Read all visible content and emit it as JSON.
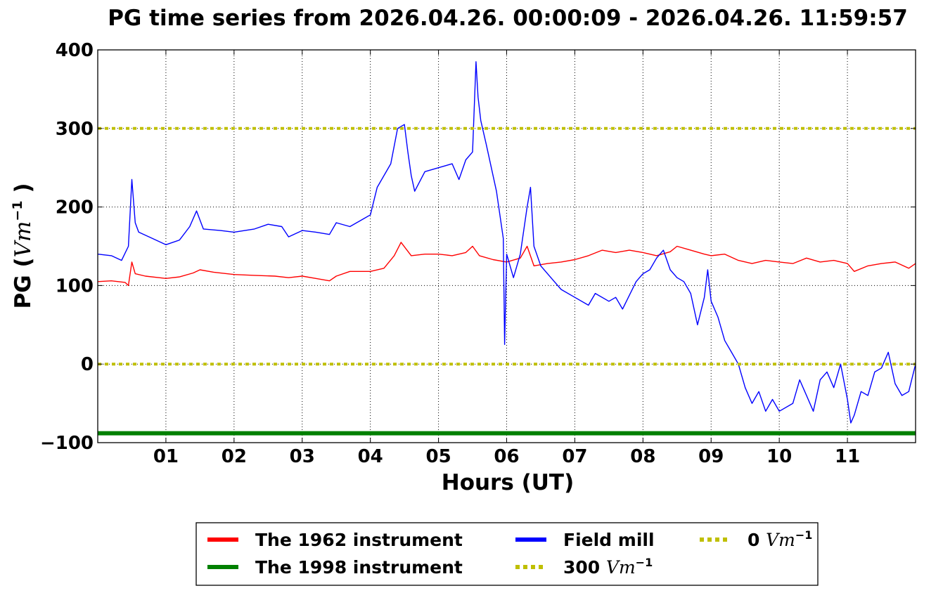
{
  "chart_data": {
    "type": "line",
    "title": "PG time series from 2026.04.26. 00:00:09 - 2026.04.26. 11:59:57",
    "xlabel": "Hours (UT)",
    "ylabel": {
      "prefix": "PG (",
      "math": "Vm",
      "sup": "−1",
      "suffix": " )"
    },
    "xlim": [
      0,
      12
    ],
    "ylim": [
      -100,
      400
    ],
    "xticks": [
      {
        "value": 1,
        "label": "01"
      },
      {
        "value": 2,
        "label": "02"
      },
      {
        "value": 3,
        "label": "03"
      },
      {
        "value": 4,
        "label": "04"
      },
      {
        "value": 5,
        "label": "05"
      },
      {
        "value": 6,
        "label": "06"
      },
      {
        "value": 7,
        "label": "07"
      },
      {
        "value": 8,
        "label": "08"
      },
      {
        "value": 9,
        "label": "09"
      },
      {
        "value": 10,
        "label": "10"
      },
      {
        "value": 11,
        "label": "11"
      }
    ],
    "yticks": [
      {
        "value": -100,
        "label": "−100"
      },
      {
        "value": 0,
        "label": "0"
      },
      {
        "value": 100,
        "label": "100"
      },
      {
        "value": 200,
        "label": "200"
      },
      {
        "value": 300,
        "label": "300"
      },
      {
        "value": 400,
        "label": "400"
      }
    ],
    "grid": true,
    "legend_position": "bottom-outside",
    "series": [
      {
        "name": "The 1962 instrument",
        "color": "#ff0000",
        "style": "solid",
        "x": [
          0.0,
          0.2,
          0.4,
          0.45,
          0.5,
          0.55,
          0.7,
          0.9,
          1.0,
          1.2,
          1.4,
          1.5,
          1.7,
          2.0,
          2.3,
          2.6,
          2.8,
          3.0,
          3.2,
          3.4,
          3.5,
          3.7,
          4.0,
          4.2,
          4.35,
          4.45,
          4.6,
          4.8,
          5.0,
          5.2,
          5.4,
          5.5,
          5.6,
          5.8,
          6.0,
          6.2,
          6.3,
          6.4,
          6.6,
          6.8,
          7.0,
          7.2,
          7.4,
          7.6,
          7.8,
          8.0,
          8.2,
          8.4,
          8.5,
          8.7,
          8.9,
          9.0,
          9.2,
          9.4,
          9.6,
          9.8,
          10.0,
          10.2,
          10.4,
          10.6,
          10.8,
          11.0,
          11.1,
          11.3,
          11.5,
          11.7,
          11.9,
          12.0
        ],
        "y": [
          105,
          106,
          104,
          100,
          130,
          115,
          112,
          110,
          109,
          111,
          116,
          120,
          117,
          114,
          113,
          112,
          110,
          112,
          109,
          106,
          112,
          118,
          118,
          122,
          138,
          155,
          138,
          140,
          140,
          138,
          142,
          150,
          138,
          133,
          130,
          135,
          150,
          125,
          128,
          130,
          133,
          138,
          145,
          142,
          145,
          142,
          138,
          143,
          150,
          145,
          140,
          138,
          140,
          132,
          128,
          132,
          130,
          128,
          135,
          130,
          132,
          128,
          118,
          125,
          128,
          130,
          122,
          128
        ]
      },
      {
        "name": "The 1998 instrument",
        "color": "#008000",
        "style": "solid",
        "x": [
          0,
          12
        ],
        "y": [
          -88,
          -88
        ]
      },
      {
        "name": "Field mill",
        "color": "#0000ff",
        "style": "solid",
        "x": [
          0.0,
          0.2,
          0.35,
          0.45,
          0.5,
          0.55,
          0.6,
          0.8,
          1.0,
          1.2,
          1.35,
          1.45,
          1.55,
          1.8,
          2.0,
          2.3,
          2.5,
          2.7,
          2.8,
          3.0,
          3.2,
          3.4,
          3.5,
          3.7,
          3.9,
          4.0,
          4.1,
          4.3,
          4.4,
          4.5,
          4.55,
          4.6,
          4.65,
          4.8,
          5.0,
          5.2,
          5.3,
          5.4,
          5.5,
          5.55,
          5.58,
          5.62,
          5.7,
          5.85,
          5.95,
          5.97,
          6.0,
          6.1,
          6.2,
          6.3,
          6.35,
          6.4,
          6.5,
          6.7,
          6.8,
          7.0,
          7.2,
          7.3,
          7.5,
          7.6,
          7.7,
          7.9,
          8.0,
          8.1,
          8.2,
          8.3,
          8.4,
          8.5,
          8.6,
          8.7,
          8.8,
          8.9,
          8.95,
          9.0,
          9.1,
          9.2,
          9.3,
          9.4,
          9.5,
          9.6,
          9.7,
          9.8,
          9.9,
          10.0,
          10.2,
          10.3,
          10.4,
          10.5,
          10.6,
          10.7,
          10.8,
          10.9,
          11.0,
          11.05,
          11.1,
          11.2,
          11.3,
          11.4,
          11.5,
          11.6,
          11.7,
          11.8,
          11.9,
          12.0
        ],
        "y": [
          140,
          138,
          132,
          150,
          235,
          180,
          168,
          160,
          152,
          158,
          175,
          195,
          172,
          170,
          168,
          172,
          178,
          175,
          162,
          170,
          168,
          165,
          180,
          175,
          185,
          190,
          225,
          255,
          300,
          305,
          270,
          240,
          220,
          245,
          250,
          255,
          235,
          260,
          270,
          385,
          340,
          310,
          280,
          220,
          160,
          25,
          140,
          110,
          140,
          200,
          225,
          150,
          125,
          105,
          95,
          85,
          75,
          90,
          80,
          85,
          70,
          105,
          115,
          120,
          135,
          145,
          120,
          110,
          105,
          90,
          50,
          85,
          120,
          80,
          60,
          30,
          15,
          0,
          -30,
          -50,
          -35,
          -60,
          -45,
          -60,
          -50,
          -20,
          -40,
          -60,
          -20,
          -10,
          -30,
          0,
          -45,
          -75,
          -65,
          -35,
          -40,
          -10,
          -5,
          15,
          -25,
          -40,
          -35,
          0
        ]
      },
      {
        "name": "300 Vm⁻¹",
        "legend_prefix": "300 ",
        "color": "#bfbf00",
        "style": "dotted",
        "x": [
          0,
          12
        ],
        "y": [
          300,
          300
        ]
      },
      {
        "name": "0 Vm⁻¹",
        "legend_prefix": "0 ",
        "color": "#bfbf00",
        "style": "dotted",
        "x": [
          0,
          12
        ],
        "y": [
          0,
          0
        ]
      }
    ]
  },
  "legend": {
    "items": [
      {
        "label": "The 1962 instrument"
      },
      {
        "label": "The 1998 instrument"
      },
      {
        "label": "Field mill"
      },
      {
        "prefix": "300 ",
        "math": "Vm",
        "sup": "−1"
      },
      {
        "prefix": "0 ",
        "math": "Vm",
        "sup": "−1"
      }
    ]
  }
}
